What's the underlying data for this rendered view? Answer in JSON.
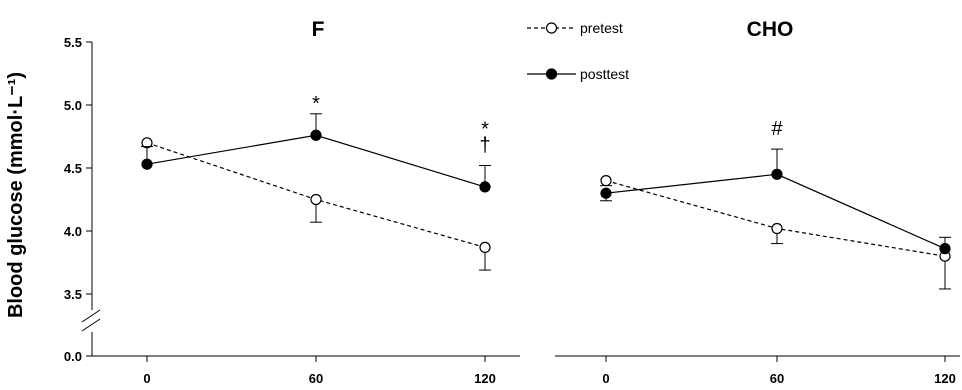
{
  "chart_data": {
    "ylabel": "Blood glucose (mmol·L⁻¹)",
    "y_ticks": [
      "0.0",
      "3.5",
      "4.0",
      "4.5",
      "5.0",
      "5.5"
    ],
    "y_axis_break": true,
    "ylim": [
      3.0,
      5.5
    ],
    "legend": {
      "placement": "top-center",
      "entries": [
        "pretest",
        "posttest"
      ]
    },
    "colors": {
      "line": "#000000",
      "pretest_marker": "#ffffff",
      "posttest_marker": "#000000"
    },
    "panels": [
      {
        "type": "line",
        "title": "F",
        "x": [
          0,
          60,
          120
        ],
        "x_tick_labels": [
          "0",
          "60",
          "120"
        ],
        "series": [
          {
            "name": "pretest",
            "style": "dashed",
            "marker": "open-circle",
            "values": [
              4.7,
              4.25,
              3.87
            ],
            "errors": [
              0.0,
              0.18,
              0.18
            ],
            "error_dir": "down"
          },
          {
            "name": "posttest",
            "style": "solid",
            "marker": "filled-circle",
            "values": [
              4.53,
              4.76,
              4.35
            ],
            "errors": [
              0.14,
              0.17,
              0.17
            ],
            "error_dir": "up"
          }
        ],
        "annotations": [
          {
            "text": "*",
            "x": 60
          },
          {
            "text": "†",
            "x": 120
          },
          {
            "text": "*",
            "x": 120
          }
        ]
      },
      {
        "type": "line",
        "title": "CHO",
        "x": [
          0,
          60,
          120
        ],
        "x_tick_labels": [
          "0",
          "60",
          "120"
        ],
        "series": [
          {
            "name": "pretest",
            "style": "dashed",
            "marker": "open-circle",
            "values": [
              4.4,
              4.02,
              3.8
            ],
            "errors": [
              0.04,
              0.12,
              0.26
            ],
            "error_dir": "down"
          },
          {
            "name": "posttest",
            "style": "solid",
            "marker": "filled-circle",
            "values": [
              4.3,
              4.45,
              3.86
            ],
            "errors": [
              0.06,
              0.2,
              0.09
            ],
            "error_dir": "mixed"
          }
        ],
        "annotations": [
          {
            "text": "#",
            "x": 60
          }
        ]
      }
    ]
  }
}
